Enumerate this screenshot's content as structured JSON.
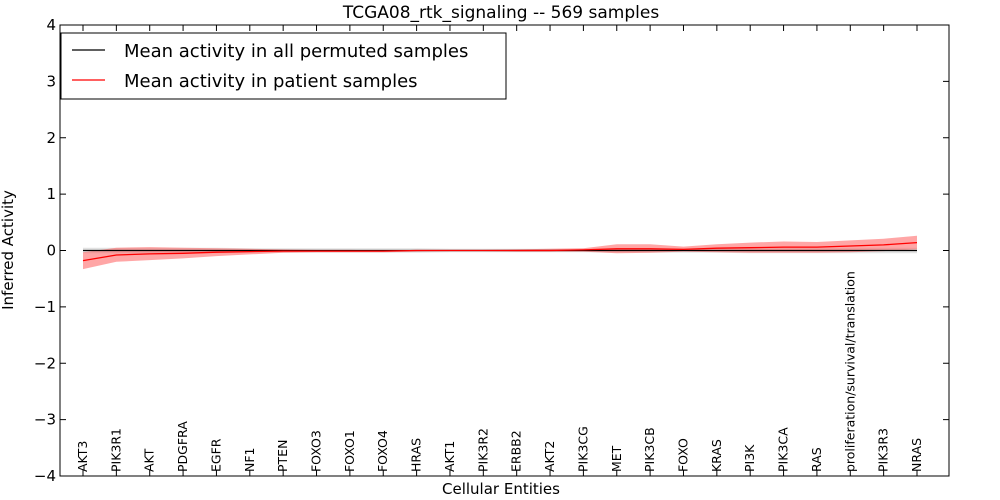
{
  "chart_data": {
    "type": "line",
    "title": "TCGA08_rtk_signaling -- 569 samples",
    "xlabel": "Cellular Entities",
    "ylabel": "Inferred Activity",
    "ylim": [
      -4,
      4
    ],
    "yticks": [
      4,
      3,
      2,
      1,
      0,
      -1,
      -2,
      -3,
      -4
    ],
    "ytick_labels": [
      "4",
      "3",
      "2",
      "1",
      "0",
      "−1",
      "−2",
      "−3",
      "−4"
    ],
    "legend_position": "top-left",
    "categories": [
      "AKT3",
      "PIK3R1",
      "AKT",
      "PDGFRA",
      "EGFR",
      "NF1",
      "PTEN",
      "FOXO3",
      "FOXO1",
      "FOXO4",
      "HRAS",
      "AKT1",
      "PIK3R2",
      "ERBB2",
      "AKT2",
      "PIK3CG",
      "MET",
      "PIK3CB",
      "FOXO",
      "KRAS",
      "PI3K",
      "PIK3CA",
      "RAS",
      "proliferation/survival/translation",
      "PIK3R3",
      "NRAS"
    ],
    "series": [
      {
        "name": "Mean activity in all permuted samples",
        "color": "#000000",
        "band_color": "#bfbfbf",
        "values": [
          0.0,
          0.0,
          0.0,
          0.0,
          0.0,
          0.0,
          0.0,
          0.0,
          0.0,
          0.0,
          0.0,
          0.0,
          0.0,
          0.0,
          0.0,
          0.0,
          0.0,
          0.0,
          0.0,
          0.0,
          0.0,
          0.0,
          0.0,
          0.0,
          0.0,
          0.0
        ],
        "band_lower": [
          -0.05,
          -0.05,
          -0.05,
          -0.05,
          -0.05,
          -0.04,
          -0.04,
          -0.04,
          -0.04,
          -0.04,
          -0.04,
          -0.03,
          -0.03,
          -0.03,
          -0.03,
          -0.03,
          -0.04,
          -0.04,
          -0.04,
          -0.04,
          -0.05,
          -0.05,
          -0.05,
          -0.05,
          -0.05,
          -0.05
        ],
        "band_upper": [
          0.05,
          0.05,
          0.05,
          0.05,
          0.05,
          0.04,
          0.04,
          0.04,
          0.04,
          0.04,
          0.04,
          0.03,
          0.03,
          0.03,
          0.03,
          0.03,
          0.04,
          0.04,
          0.04,
          0.04,
          0.05,
          0.05,
          0.05,
          0.05,
          0.05,
          0.05
        ]
      },
      {
        "name": "Mean activity in patient samples",
        "color": "#ff0000",
        "band_color": "#ff6a6a",
        "values": [
          -0.18,
          -0.08,
          -0.06,
          -0.05,
          -0.03,
          -0.02,
          -0.01,
          -0.01,
          -0.01,
          -0.01,
          0.0,
          0.0,
          0.0,
          0.0,
          0.0,
          0.01,
          0.03,
          0.03,
          0.02,
          0.04,
          0.05,
          0.06,
          0.06,
          0.08,
          0.1,
          0.14
        ],
        "band_lower": [
          -0.33,
          -0.2,
          -0.17,
          -0.14,
          -0.1,
          -0.07,
          -0.04,
          -0.03,
          -0.03,
          -0.03,
          -0.02,
          -0.01,
          -0.01,
          -0.02,
          -0.02,
          -0.02,
          -0.05,
          -0.04,
          -0.02,
          -0.03,
          -0.04,
          -0.04,
          -0.04,
          -0.03,
          -0.01,
          0.02
        ],
        "band_upper": [
          -0.03,
          0.05,
          0.06,
          0.05,
          0.04,
          0.03,
          0.02,
          0.01,
          0.01,
          0.0,
          0.01,
          0.01,
          0.01,
          0.02,
          0.03,
          0.04,
          0.11,
          0.11,
          0.07,
          0.11,
          0.14,
          0.16,
          0.15,
          0.18,
          0.21,
          0.26
        ]
      }
    ]
  }
}
